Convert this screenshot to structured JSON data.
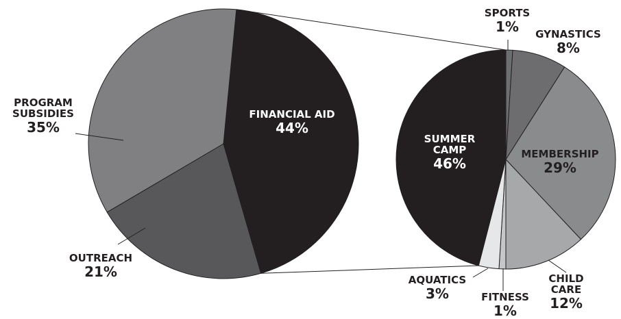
{
  "chart_data": [
    {
      "type": "pie",
      "categories": [
        "FINANCIAL AID",
        "OUTREACH",
        "PROGRAM\nSUBSIDIES"
      ],
      "values": [
        44,
        21,
        35
      ],
      "value_labels": [
        "44%",
        "21%",
        "35%"
      ],
      "colors": [
        "#231f20",
        "#58585a",
        "#808082"
      ]
    },
    {
      "type": "pie",
      "categories": [
        "SPORTS",
        "GYNASTICS",
        "MEMBERSHIP",
        "CHILD\nCARE",
        "FITNESS",
        "AQUATICS",
        "SUMMER\nCAMP"
      ],
      "values": [
        1,
        8,
        29,
        12,
        1,
        3,
        46
      ],
      "value_labels": [
        "1%",
        "8%",
        "29%",
        "12%",
        "1%",
        "3%",
        "46%"
      ],
      "colors": [
        "#6d6e70",
        "#6d6d6f",
        "#8a8b8d",
        "#a7a8aa",
        "#c6c7c8",
        "#e6e7e8",
        "#231f20"
      ]
    }
  ]
}
